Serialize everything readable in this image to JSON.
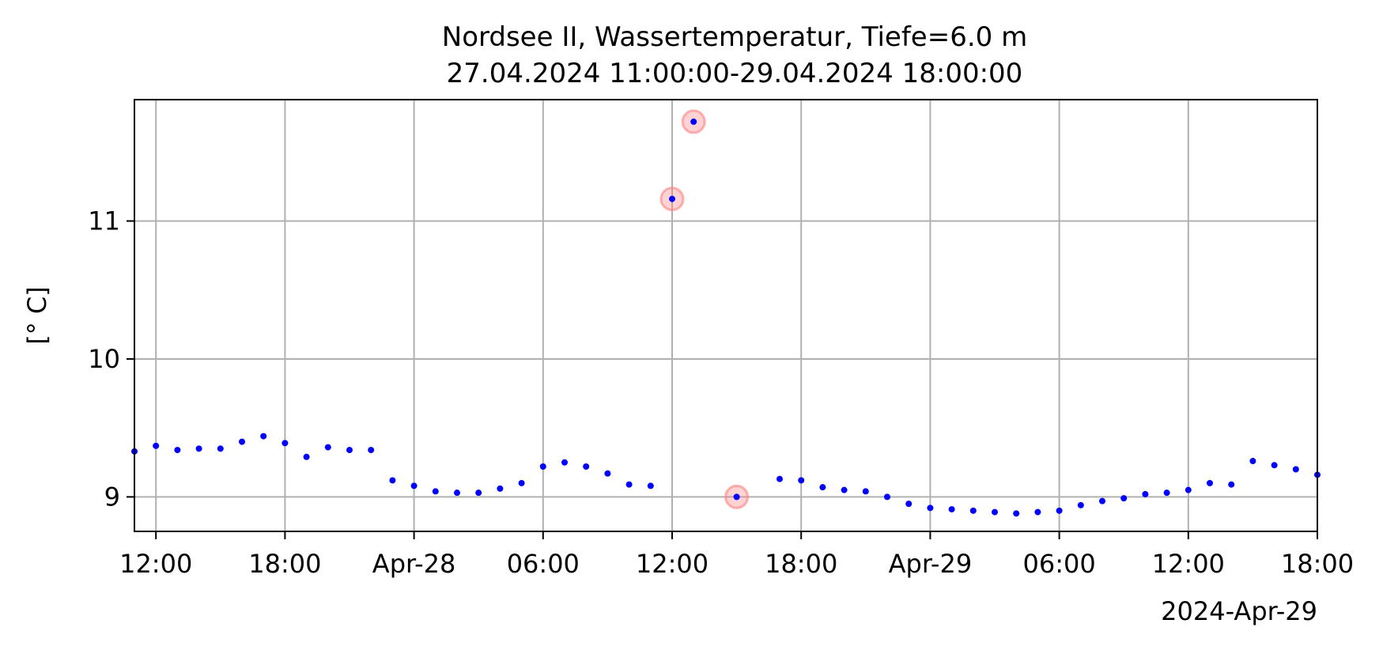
{
  "chart_data": {
    "type": "scatter",
    "title": "Nordsee II, Wassertemperatur, Tiefe=6.0 m",
    "subtitle": "27.04.2024 11:00:00-29.04.2024 18:00:00",
    "ylabel": "[° C]",
    "x_offset_label": "2024-Apr-29",
    "xlim": [
      "2024-04-27 11:00",
      "2024-04-29 18:00"
    ],
    "ylim": [
      8.75,
      11.88
    ],
    "grid": true,
    "x_ticks": [
      {
        "at": "2024-04-27 12:00",
        "label": "12:00"
      },
      {
        "at": "2024-04-27 18:00",
        "label": "18:00"
      },
      {
        "at": "2024-04-28 00:00",
        "label": "Apr-28"
      },
      {
        "at": "2024-04-28 06:00",
        "label": "06:00"
      },
      {
        "at": "2024-04-28 12:00",
        "label": "12:00"
      },
      {
        "at": "2024-04-28 18:00",
        "label": "18:00"
      },
      {
        "at": "2024-04-29 00:00",
        "label": "Apr-29"
      },
      {
        "at": "2024-04-29 06:00",
        "label": "06:00"
      },
      {
        "at": "2024-04-29 12:00",
        "label": "12:00"
      },
      {
        "at": "2024-04-29 18:00",
        "label": "18:00"
      }
    ],
    "y_ticks": [
      {
        "value": 9,
        "label": "9"
      },
      {
        "value": 10,
        "label": "10"
      },
      {
        "value": 11,
        "label": "11"
      }
    ],
    "point_color": "#0000ff",
    "flag_color": "#ff8080",
    "points": [
      {
        "x": "2024-04-27 11:00",
        "y": 9.33
      },
      {
        "x": "2024-04-27 12:00",
        "y": 9.37
      },
      {
        "x": "2024-04-27 13:00",
        "y": 9.34
      },
      {
        "x": "2024-04-27 14:00",
        "y": 9.35
      },
      {
        "x": "2024-04-27 15:00",
        "y": 9.35
      },
      {
        "x": "2024-04-27 16:00",
        "y": 9.4
      },
      {
        "x": "2024-04-27 17:00",
        "y": 9.44
      },
      {
        "x": "2024-04-27 18:00",
        "y": 9.39
      },
      {
        "x": "2024-04-27 19:00",
        "y": 9.29
      },
      {
        "x": "2024-04-27 20:00",
        "y": 9.36
      },
      {
        "x": "2024-04-27 21:00",
        "y": 9.34
      },
      {
        "x": "2024-04-27 22:00",
        "y": 9.34
      },
      {
        "x": "2024-04-27 23:00",
        "y": 9.12
      },
      {
        "x": "2024-04-28 00:00",
        "y": 9.08
      },
      {
        "x": "2024-04-28 01:00",
        "y": 9.04
      },
      {
        "x": "2024-04-28 02:00",
        "y": 9.03
      },
      {
        "x": "2024-04-28 03:00",
        "y": 9.03
      },
      {
        "x": "2024-04-28 04:00",
        "y": 9.06
      },
      {
        "x": "2024-04-28 05:00",
        "y": 9.1
      },
      {
        "x": "2024-04-28 06:00",
        "y": 9.22
      },
      {
        "x": "2024-04-28 07:00",
        "y": 9.25
      },
      {
        "x": "2024-04-28 08:00",
        "y": 9.22
      },
      {
        "x": "2024-04-28 09:00",
        "y": 9.17
      },
      {
        "x": "2024-04-28 10:00",
        "y": 9.09
      },
      {
        "x": "2024-04-28 11:00",
        "y": 9.08
      },
      {
        "x": "2024-04-28 12:00",
        "y": 11.16,
        "flagged": true
      },
      {
        "x": "2024-04-28 13:00",
        "y": 11.72,
        "flagged": true
      },
      {
        "x": "2024-04-28 15:00",
        "y": 9.0,
        "flagged": true
      },
      {
        "x": "2024-04-28 17:00",
        "y": 9.13
      },
      {
        "x": "2024-04-28 18:00",
        "y": 9.12
      },
      {
        "x": "2024-04-28 19:00",
        "y": 9.07
      },
      {
        "x": "2024-04-28 20:00",
        "y": 9.05
      },
      {
        "x": "2024-04-28 21:00",
        "y": 9.04
      },
      {
        "x": "2024-04-28 22:00",
        "y": 9.0
      },
      {
        "x": "2024-04-28 23:00",
        "y": 8.95
      },
      {
        "x": "2024-04-29 00:00",
        "y": 8.92
      },
      {
        "x": "2024-04-29 01:00",
        "y": 8.91
      },
      {
        "x": "2024-04-29 02:00",
        "y": 8.9
      },
      {
        "x": "2024-04-29 03:00",
        "y": 8.89
      },
      {
        "x": "2024-04-29 04:00",
        "y": 8.88
      },
      {
        "x": "2024-04-29 05:00",
        "y": 8.89
      },
      {
        "x": "2024-04-29 06:00",
        "y": 8.9
      },
      {
        "x": "2024-04-29 07:00",
        "y": 8.94
      },
      {
        "x": "2024-04-29 08:00",
        "y": 8.97
      },
      {
        "x": "2024-04-29 09:00",
        "y": 8.99
      },
      {
        "x": "2024-04-29 10:00",
        "y": 9.02
      },
      {
        "x": "2024-04-29 11:00",
        "y": 9.03
      },
      {
        "x": "2024-04-29 12:00",
        "y": 9.05
      },
      {
        "x": "2024-04-29 13:00",
        "y": 9.1
      },
      {
        "x": "2024-04-29 14:00",
        "y": 9.09
      },
      {
        "x": "2024-04-29 15:00",
        "y": 9.26
      },
      {
        "x": "2024-04-29 16:00",
        "y": 9.23
      },
      {
        "x": "2024-04-29 17:00",
        "y": 9.2
      },
      {
        "x": "2024-04-29 18:00",
        "y": 9.16
      }
    ]
  }
}
